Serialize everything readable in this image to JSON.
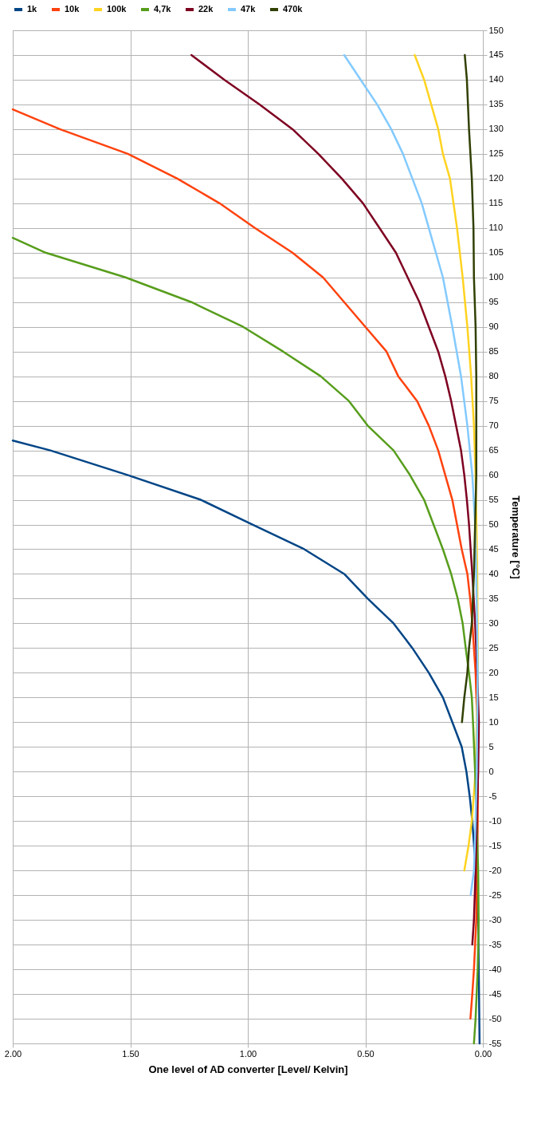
{
  "chart_data": {
    "type": "line",
    "xlabel": "One level of AD converter [Level/ Kelvin]",
    "ylabel": "Temperature [°C]",
    "xlim": [
      2,
      0
    ],
    "xticks": [
      {
        "value": 2,
        "label": "2.00"
      },
      {
        "value": 1.5,
        "label": "1.50"
      },
      {
        "value": 1,
        "label": "1.00"
      },
      {
        "value": 0.5,
        "label": "0.50"
      },
      {
        "value": 0,
        "label": "0.00"
      }
    ],
    "ylim": [
      -55,
      150
    ],
    "yticks": [
      -55,
      -50,
      -45,
      -40,
      -35,
      -30,
      -25,
      -20,
      -15,
      -10,
      -5,
      0,
      5,
      10,
      15,
      20,
      25,
      30,
      35,
      40,
      45,
      50,
      55,
      60,
      65,
      70,
      75,
      80,
      85,
      90,
      95,
      100,
      105,
      110,
      115,
      120,
      125,
      130,
      135,
      140,
      145,
      150
    ],
    "grid": true,
    "legend": "top left",
    "marker": "none",
    "line_style": "solid",
    "series": [
      {
        "name": "1k",
        "color": "#004586",
        "values": [
          -55,
          -30,
          -20,
          -10,
          -5,
          0,
          5,
          10,
          15,
          20,
          25,
          30,
          35,
          40,
          45,
          50,
          55,
          60,
          65,
          67
        ],
        "x": [
          0.014,
          0.02,
          0.03,
          0.045,
          0.056,
          0.07,
          0.09,
          0.13,
          0.17,
          0.23,
          0.3,
          0.38,
          0.49,
          0.59,
          0.76,
          0.98,
          1.2,
          1.51,
          1.84,
          2.0
        ]
      },
      {
        "name": "10k",
        "color": "#ff420e",
        "values": [
          -50,
          -45,
          -40,
          -30,
          -20,
          -10,
          0,
          10,
          20,
          25,
          30,
          35,
          40,
          45,
          50,
          55,
          60,
          65,
          70,
          75,
          80,
          85,
          90,
          95,
          100,
          105,
          110,
          115,
          120,
          125,
          130,
          134
        ],
        "x": [
          0.053,
          0.045,
          0.038,
          0.028,
          0.024,
          0.022,
          0.021,
          0.024,
          0.031,
          0.038,
          0.045,
          0.054,
          0.066,
          0.09,
          0.11,
          0.13,
          0.16,
          0.19,
          0.23,
          0.28,
          0.36,
          0.41,
          0.5,
          0.59,
          0.68,
          0.81,
          0.97,
          1.12,
          1.3,
          1.51,
          1.8,
          2.0
        ]
      },
      {
        "name": "100k",
        "color": "#ffd320",
        "values": [
          -20,
          -15,
          -10,
          0,
          20,
          40,
          60,
          70,
          80,
          90,
          100,
          110,
          120,
          125,
          130,
          135,
          140,
          145
        ],
        "x": [
          0.079,
          0.061,
          0.047,
          0.031,
          0.021,
          0.024,
          0.031,
          0.038,
          0.05,
          0.066,
          0.086,
          0.11,
          0.14,
          0.17,
          0.19,
          0.22,
          0.25,
          0.29
        ]
      },
      {
        "name": "4,7k",
        "color": "#579d1c",
        "values": [
          -55,
          -50,
          -40,
          -30,
          -20,
          0,
          10,
          15,
          20,
          25,
          30,
          35,
          40,
          45,
          50,
          55,
          60,
          65,
          70,
          75,
          80,
          85,
          90,
          95,
          100,
          105,
          108
        ],
        "x": [
          0.038,
          0.031,
          0.022,
          0.018,
          0.02,
          0.033,
          0.042,
          0.047,
          0.059,
          0.073,
          0.086,
          0.107,
          0.135,
          0.17,
          0.21,
          0.25,
          0.31,
          0.38,
          0.49,
          0.57,
          0.69,
          0.85,
          1.02,
          1.24,
          1.52,
          1.86,
          2.0
        ]
      },
      {
        "name": "22k",
        "color": "#7e0021",
        "values": [
          -35,
          -30,
          -20,
          -10,
          0,
          10,
          20,
          30,
          40,
          50,
          55,
          60,
          65,
          70,
          75,
          80,
          85,
          90,
          95,
          100,
          105,
          110,
          115,
          120,
          125,
          130,
          135,
          140,
          145
        ],
        "x": [
          0.045,
          0.038,
          0.031,
          0.026,
          0.02,
          0.017,
          0.024,
          0.033,
          0.045,
          0.059,
          0.068,
          0.079,
          0.093,
          0.114,
          0.135,
          0.16,
          0.19,
          0.23,
          0.27,
          0.32,
          0.37,
          0.44,
          0.51,
          0.6,
          0.7,
          0.81,
          0.95,
          1.1,
          1.24
        ]
      },
      {
        "name": "47k",
        "color": "#83caff",
        "values": [
          -25,
          -20,
          -10,
          0,
          20,
          40,
          50,
          60,
          70,
          80,
          90,
          100,
          105,
          110,
          115,
          120,
          125,
          130,
          135,
          140,
          145
        ],
        "x": [
          0.052,
          0.038,
          0.031,
          0.026,
          0.022,
          0.028,
          0.033,
          0.045,
          0.066,
          0.093,
          0.13,
          0.17,
          0.2,
          0.23,
          0.26,
          0.3,
          0.34,
          0.39,
          0.45,
          0.52,
          0.59
        ]
      },
      {
        "name": "470k",
        "color": "#314004",
        "values": [
          10,
          15,
          20,
          25,
          30,
          40,
          60,
          80,
          90,
          100,
          110,
          120,
          130,
          140,
          145
        ],
        "x": [
          0.089,
          0.079,
          0.066,
          0.059,
          0.047,
          0.038,
          0.028,
          0.028,
          0.031,
          0.038,
          0.04,
          0.047,
          0.059,
          0.068,
          0.077
        ]
      }
    ]
  }
}
